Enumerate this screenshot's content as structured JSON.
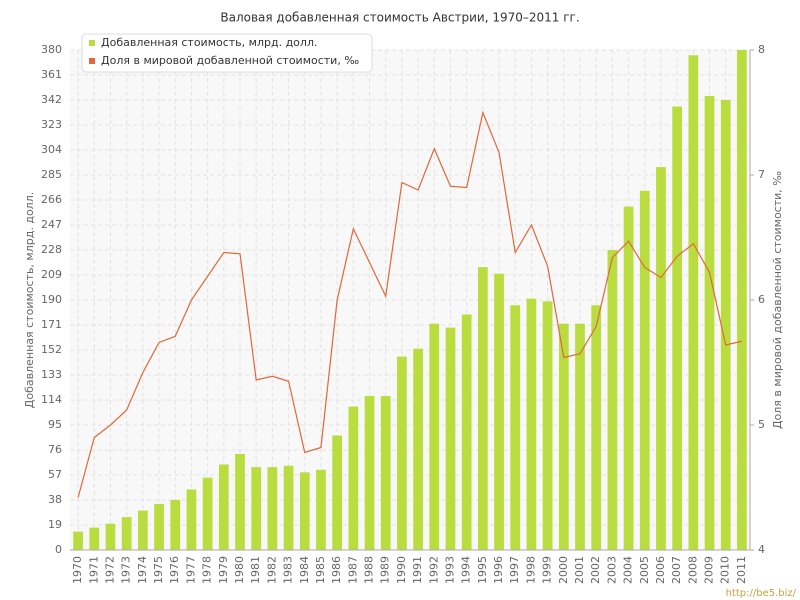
{
  "chart_data": {
    "type": "bar-line",
    "title": "Валовая добавленная стоимость Австрии, 1970–2011 гг.",
    "y_label": "Добавленная стоимость, млрд. долл.",
    "y2_label": "Доля в мировой добавленной стоимости, ‰",
    "categories": [
      "1970",
      "1971",
      "1972",
      "1973",
      "1974",
      "1975",
      "1976",
      "1977",
      "1978",
      "1979",
      "1980",
      "1981",
      "1982",
      "1983",
      "1984",
      "1985",
      "1986",
      "1987",
      "1988",
      "1989",
      "1990",
      "1991",
      "1992",
      "1993",
      "1994",
      "1995",
      "1996",
      "1997",
      "1998",
      "1999",
      "2000",
      "2001",
      "2002",
      "2003",
      "2004",
      "2005",
      "2006",
      "2007",
      "2008",
      "2009",
      "2010",
      "2011"
    ],
    "series": [
      {
        "name": "Добавленная стоимость, млрд. долл.",
        "color": "#b9dc3e",
        "kind": "bar",
        "values": [
          14,
          17,
          20,
          25,
          30,
          35,
          38,
          46,
          55,
          65,
          73,
          63,
          63,
          64,
          59,
          61,
          87,
          109,
          117,
          117,
          147,
          153,
          172,
          169,
          179,
          215,
          210,
          186,
          191,
          189,
          172,
          172,
          186,
          228,
          261,
          273,
          291,
          337,
          376,
          345,
          342,
          380
        ]
      },
      {
        "name": "Доля в мировой добавленной стоимости, ‰",
        "color": "#e0683a",
        "kind": "line",
        "axis": "y2",
        "values": [
          4.42,
          4.9,
          5.0,
          5.12,
          5.42,
          5.66,
          5.71,
          6.0,
          6.19,
          6.38,
          6.37,
          5.36,
          5.39,
          5.35,
          4.78,
          4.82,
          6.0,
          6.57,
          6.3,
          6.03,
          6.94,
          6.88,
          7.21,
          6.91,
          6.9,
          7.5,
          7.18,
          6.38,
          6.6,
          6.27,
          5.54,
          5.57,
          5.79,
          6.34,
          6.47,
          6.26,
          6.18,
          6.35,
          6.45,
          6.22,
          5.64,
          5.67
        ]
      }
    ],
    "ylim": [
      0,
      380
    ],
    "yticks": [
      0,
      19,
      38,
      57,
      76,
      95,
      114,
      133,
      152,
      171,
      190,
      209,
      228,
      247,
      266,
      285,
      304,
      323,
      342,
      361,
      380
    ],
    "y2lim": [
      4,
      8
    ],
    "y2ticks": [
      4,
      5,
      6,
      7,
      8
    ],
    "grid": true,
    "legend": "top-left",
    "source": "http://be5.biz/"
  }
}
